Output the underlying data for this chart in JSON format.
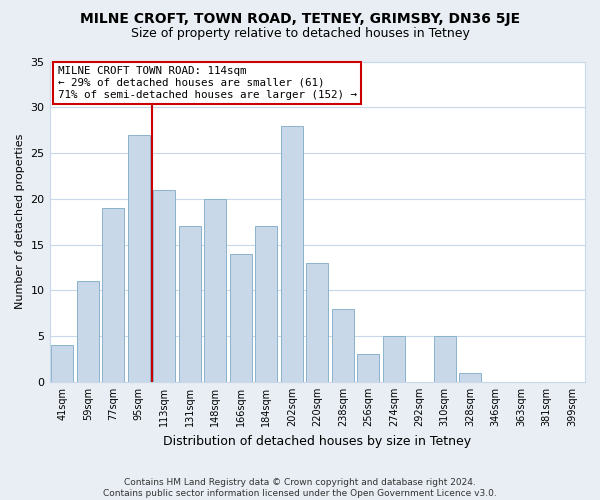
{
  "title": "MILNE CROFT, TOWN ROAD, TETNEY, GRIMSBY, DN36 5JE",
  "subtitle": "Size of property relative to detached houses in Tetney",
  "xlabel": "Distribution of detached houses by size in Tetney",
  "ylabel": "Number of detached properties",
  "footer_line1": "Contains HM Land Registry data © Crown copyright and database right 2024.",
  "footer_line2": "Contains public sector information licensed under the Open Government Licence v3.0.",
  "bin_labels": [
    "41sqm",
    "59sqm",
    "77sqm",
    "95sqm",
    "113sqm",
    "131sqm",
    "148sqm",
    "166sqm",
    "184sqm",
    "202sqm",
    "220sqm",
    "238sqm",
    "256sqm",
    "274sqm",
    "292sqm",
    "310sqm",
    "328sqm",
    "346sqm",
    "363sqm",
    "381sqm",
    "399sqm"
  ],
  "bar_values": [
    4,
    11,
    19,
    27,
    21,
    17,
    20,
    14,
    17,
    28,
    13,
    8,
    3,
    5,
    0,
    5,
    1,
    0,
    0,
    0,
    0
  ],
  "bar_color": "#c8d8e8",
  "bar_edgecolor": "#8ab4cc",
  "vline_color": "#cc0000",
  "annotation_text": "MILNE CROFT TOWN ROAD: 114sqm\n← 29% of detached houses are smaller (61)\n71% of semi-detached houses are larger (152) →",
  "annotation_box_edgecolor": "#cc0000",
  "ylim": [
    0,
    35
  ],
  "yticks": [
    0,
    5,
    10,
    15,
    20,
    25,
    30,
    35
  ],
  "grid_color": "#c8d8e8",
  "background_color": "#ffffff",
  "fig_bg_color": "#e8eef4"
}
